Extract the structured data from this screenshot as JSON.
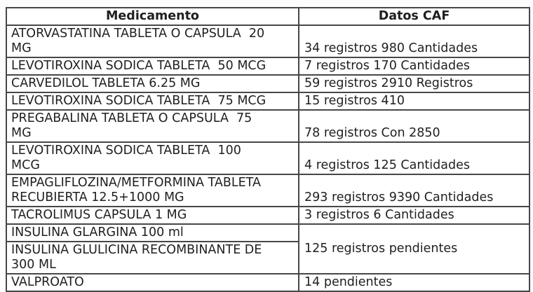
{
  "theme": {
    "background": "#fcfcfc",
    "table_background": "#ffffff",
    "border_color": "#474747",
    "text_color": "#1f1f1f"
  },
  "table": {
    "headers": {
      "medicamento": "Medicamento",
      "datos_caf": "Datos CAF"
    },
    "rows": [
      {
        "medicamento": "ATORVASTATINA TABLETA O CAPSULA  20\nMG",
        "datos": "34 registros 980 Cantidades"
      },
      {
        "medicamento": "LEVOTIROXINA SODICA TABLETA  50 MCG",
        "datos": "7 registros 170 Cantidades"
      },
      {
        "medicamento": "CARVEDILOL TABLETA 6.25 MG",
        "datos": "59 registros 2910 Registros"
      },
      {
        "medicamento": "LEVOTIROXINA SODICA TABLETA  75 MCG",
        "datos": "15 registros 410"
      },
      {
        "medicamento": "PREGABALINA TABLETA O CAPSULA  75\nMG",
        "datos": "78 registros Con 2850"
      },
      {
        "medicamento": "LEVOTIROXINA SODICA TABLETA  100\nMCG",
        "datos": "4 registros 125 Cantidades"
      },
      {
        "medicamento": "EMPAGLIFLOZINA/METFORMINA TABLETA\nRECUBIERTA 12.5+1000 MG",
        "datos": "293 registros 9390 Cantidades"
      },
      {
        "medicamento": "TACROLIMUS CAPSULA 1 MG",
        "datos": "3 registros 6 Cantidades"
      },
      {
        "medicamento": "INSULINA GLARGINA 100 ml",
        "datos": "125 registros pendientes",
        "datos_rowspan": 2
      },
      {
        "medicamento": "INSULINA GLULICINA RECOMBINANTE DE\n300 ML",
        "datos": null
      },
      {
        "medicamento": "VALPROATO",
        "datos": "14 pendientes"
      }
    ]
  }
}
